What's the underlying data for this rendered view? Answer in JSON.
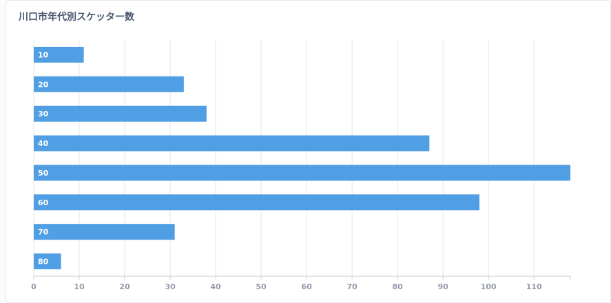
{
  "chart_data": {
    "type": "bar",
    "orientation": "horizontal",
    "title": "川口市年代別スケッター数",
    "categories": [
      "10",
      "20",
      "30",
      "40",
      "50",
      "60",
      "70",
      "80"
    ],
    "values": [
      11,
      33,
      38,
      87,
      118,
      98,
      31,
      6
    ],
    "color": "#509ee3",
    "xlim": [
      0,
      118
    ],
    "xticks": [
      0,
      10,
      20,
      30,
      40,
      50,
      60,
      70,
      80,
      90,
      100,
      110
    ],
    "grid": true
  }
}
